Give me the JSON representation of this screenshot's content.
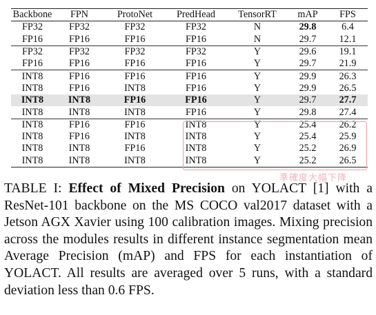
{
  "table": {
    "headers": [
      "Backbone",
      "FPN",
      "ProtoNet",
      "PredHead",
      "TensorRT",
      "mAP",
      "FPS"
    ],
    "rows": [
      [
        "FP32",
        "FP32",
        "FP32",
        "FP32",
        "N",
        "29.8",
        "6.4"
      ],
      [
        "FP16",
        "FP16",
        "FP16",
        "FP16",
        "N",
        "29.7",
        "12.1"
      ],
      [
        "FP32",
        "FP32",
        "FP32",
        "FP32",
        "Y",
        "29.6",
        "19.1"
      ],
      [
        "FP16",
        "FP16",
        "FP16",
        "FP16",
        "Y",
        "29.7",
        "21.9"
      ],
      [
        "INT8",
        "FP16",
        "FP16",
        "FP16",
        "Y",
        "29.9",
        "26.3"
      ],
      [
        "INT8",
        "FP16",
        "INT8",
        "FP16",
        "Y",
        "29.9",
        "26.5"
      ],
      [
        "INT8",
        "INT8",
        "FP16",
        "FP16",
        "Y",
        "29.7",
        "27.7"
      ],
      [
        "INT8",
        "INT8",
        "INT8",
        "FP16",
        "Y",
        "29.8",
        "27.4"
      ],
      [
        "INT8",
        "FP16",
        "FP16",
        "INT8",
        "Y",
        "25.4",
        "26.2"
      ],
      [
        "INT8",
        "FP16",
        "INT8",
        "INT8",
        "Y",
        "25.4",
        "25.9"
      ],
      [
        "INT8",
        "INT8",
        "FP16",
        "INT8",
        "Y",
        "25.2",
        "26.9"
      ],
      [
        "INT8",
        "INT8",
        "INT8",
        "INT8",
        "Y",
        "25.2",
        "26.5"
      ]
    ],
    "group_start_rows": [
      2,
      4,
      8
    ],
    "highlight_row": 6,
    "bold_cells": [
      [
        0,
        5
      ],
      [
        6,
        0
      ],
      [
        6,
        1
      ],
      [
        6,
        2
      ],
      [
        6,
        3
      ],
      [
        6,
        6
      ]
    ],
    "highlight_color": "#e3e3e3",
    "box_color": "#e7a0a8"
  },
  "watermark": "準確度大幅下降",
  "caption": {
    "label": "TABLE I: ",
    "title": "Effect of Mixed Precision",
    "text": " on YOLACT [1] with a ResNet-101 backbone on the MS COCO val2017 dataset with a Jetson AGX Xavier using 100 calibration images. Mixing precision across the modules results in different instance segmentation mean Average Precision (mAP) and FPS for each instantiation of YOLACT. All results are averaged over 5 runs, with a standard deviation less than 0.6 FPS."
  }
}
